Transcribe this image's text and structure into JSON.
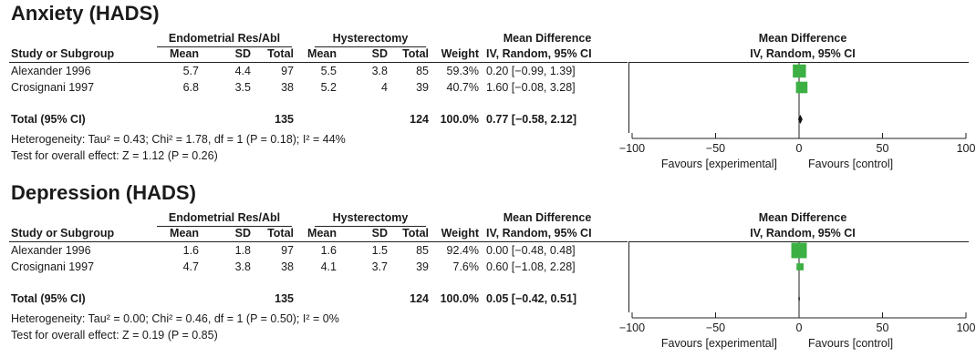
{
  "panels": [
    {
      "title": "Anxiety (HADS)",
      "headers": {
        "group1": "Endometrial Res/Abl",
        "group2": "Hysterectomy",
        "md_top": "Mean Difference",
        "md_sub": "IV, Random, 95% CI",
        "study": "Study or Subgroup",
        "mean": "Mean",
        "sd": "SD",
        "total": "Total",
        "weight": "Weight",
        "plot_top": "Mean Difference",
        "plot_sub": "IV, Random, 95% CI"
      },
      "rows": [
        {
          "study": "Alexander 1996",
          "m1": "5.7",
          "sd1": "4.4",
          "n1": "97",
          "m2": "5.5",
          "sd2": "3.8",
          "n2": "85",
          "weight": "59.3%",
          "ci": "0.20 [−0.99, 1.39]"
        },
        {
          "study": "Crosignani 1997",
          "m1": "6.8",
          "sd1": "3.5",
          "n1": "38",
          "m2": "5.2",
          "sd2": "4",
          "n2": "39",
          "weight": "40.7%",
          "ci": "1.60 [−0.08, 3.28]"
        }
      ],
      "total": {
        "label": "Total (95% CI)",
        "n1": "135",
        "n2": "124",
        "weight": "100.0%",
        "ci": "0.77 [−0.58, 2.12]"
      },
      "heterogeneity": "Heterogeneity: Tau² = 0.43; Chi² = 1.78, df = 1 (P = 0.18); I² = 44%",
      "overall": "Test for overall effect: Z = 1.12 (P = 0.26)",
      "axis_labels": {
        "left": "Favours [experimental]",
        "right": "Favours [control]"
      }
    },
    {
      "title": "Depression (HADS)",
      "headers": {
        "group1": "Endometrial Res/Abl",
        "group2": "Hysterectomy",
        "md_top": "Mean Difference",
        "md_sub": "IV, Random, 95% CI",
        "study": "Study or Subgroup",
        "mean": "Mean",
        "sd": "SD",
        "total": "Total",
        "weight": "Weight",
        "plot_top": "Mean Difference",
        "plot_sub": "IV, Random, 95% CI"
      },
      "rows": [
        {
          "study": "Alexander 1996",
          "m1": "1.6",
          "sd1": "1.8",
          "n1": "97",
          "m2": "1.6",
          "sd2": "1.5",
          "n2": "85",
          "weight": "92.4%",
          "ci": "0.00 [−0.48, 0.48]"
        },
        {
          "study": "Crosignani 1997",
          "m1": "4.7",
          "sd1": "3.8",
          "n1": "38",
          "m2": "4.1",
          "sd2": "3.7",
          "n2": "39",
          "weight": "7.6%",
          "ci": "0.60 [−1.08, 2.28]"
        }
      ],
      "total": {
        "label": "Total (95% CI)",
        "n1": "135",
        "n2": "124",
        "weight": "100.0%",
        "ci": "0.05 [−0.42, 0.51]"
      },
      "heterogeneity": "Heterogeneity: Tau² = 0.00; Chi² = 0.46, df = 1 (P = 0.50); I² = 0%",
      "overall": "Test for overall effect: Z = 0.19 (P = 0.85)",
      "axis_labels": {
        "left": "Favours [experimental]",
        "right": "Favours [control]"
      }
    }
  ],
  "colors": {
    "square": "#3cb043",
    "diamond": "#111111"
  },
  "chart_data": [
    {
      "type": "forest",
      "title": "Anxiety (HADS)",
      "xlim": [
        -100,
        100
      ],
      "xticks": [
        -100,
        -50,
        0,
        50,
        100
      ],
      "xtick_labels": [
        "−100",
        "−50",
        "0",
        "50",
        "100"
      ],
      "studies": [
        {
          "name": "Alexander 1996",
          "md": 0.2,
          "lo": -0.99,
          "hi": 1.39,
          "weight": 59.3
        },
        {
          "name": "Crosignani 1997",
          "md": 1.6,
          "lo": -0.08,
          "hi": 3.28,
          "weight": 40.7
        }
      ],
      "pooled": {
        "md": 0.77,
        "lo": -0.58,
        "hi": 2.12
      }
    },
    {
      "type": "forest",
      "title": "Depression (HADS)",
      "xlim": [
        -100,
        100
      ],
      "xticks": [
        -100,
        -50,
        0,
        50,
        100
      ],
      "xtick_labels": [
        "−100",
        "−50",
        "0",
        "50",
        "100"
      ],
      "studies": [
        {
          "name": "Alexander 1996",
          "md": 0.0,
          "lo": -0.48,
          "hi": 0.48,
          "weight": 92.4
        },
        {
          "name": "Crosignani 1997",
          "md": 0.6,
          "lo": -1.08,
          "hi": 2.28,
          "weight": 7.6
        }
      ],
      "pooled": {
        "md": 0.05,
        "lo": -0.42,
        "hi": 0.51
      }
    }
  ]
}
